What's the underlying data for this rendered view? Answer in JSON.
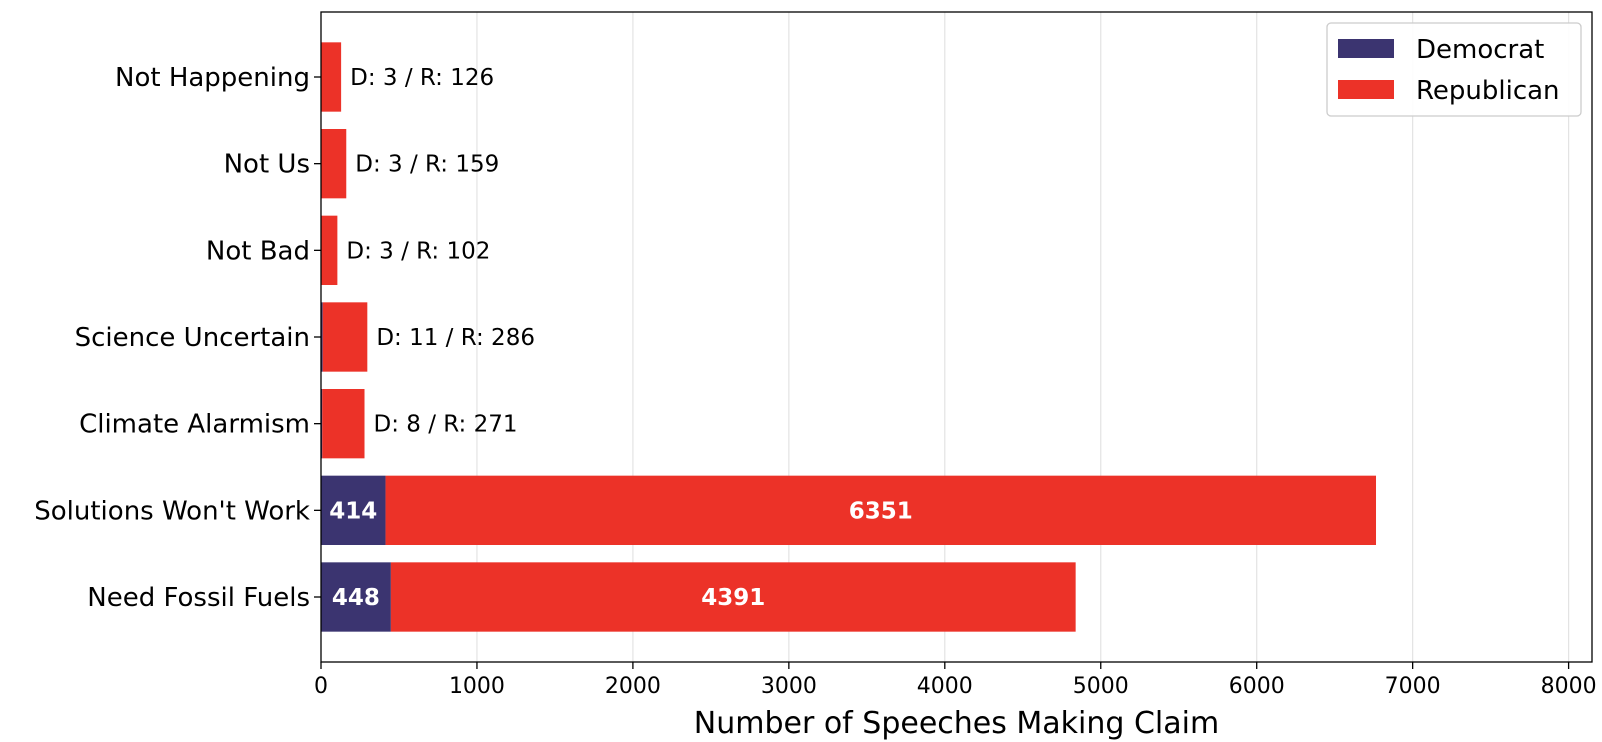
{
  "chart_data": {
    "type": "bar",
    "orientation": "horizontal",
    "stacked": true,
    "categories": [
      "Not Happening",
      "Not Us",
      "Not Bad",
      "Science Uncertain",
      "Climate Alarmism",
      "Solutions Won't Work",
      "Need Fossil Fuels"
    ],
    "series": [
      {
        "name": "Democrat",
        "values": [
          3,
          3,
          3,
          11,
          8,
          414,
          448
        ],
        "color": "#3b3470"
      },
      {
        "name": "Republican",
        "values": [
          126,
          159,
          102,
          286,
          271,
          6351,
          4391
        ],
        "color": "#ec3228"
      }
    ],
    "annotations": [
      "D: 3 / R: 126",
      "D: 3 / R: 159",
      "D: 3 / R: 102",
      "D: 11 / R: 286",
      "D: 8 / R: 271",
      "",
      ""
    ],
    "xlabel": "Number of Speeches Making Claim",
    "ylabel": "",
    "xlim": [
      0,
      8150
    ],
    "xticks": [
      "0",
      "1000",
      "2000",
      "3000",
      "4000",
      "5000",
      "6000",
      "7000",
      "8000"
    ],
    "grid": "x-major",
    "legend_position": "top-right"
  }
}
